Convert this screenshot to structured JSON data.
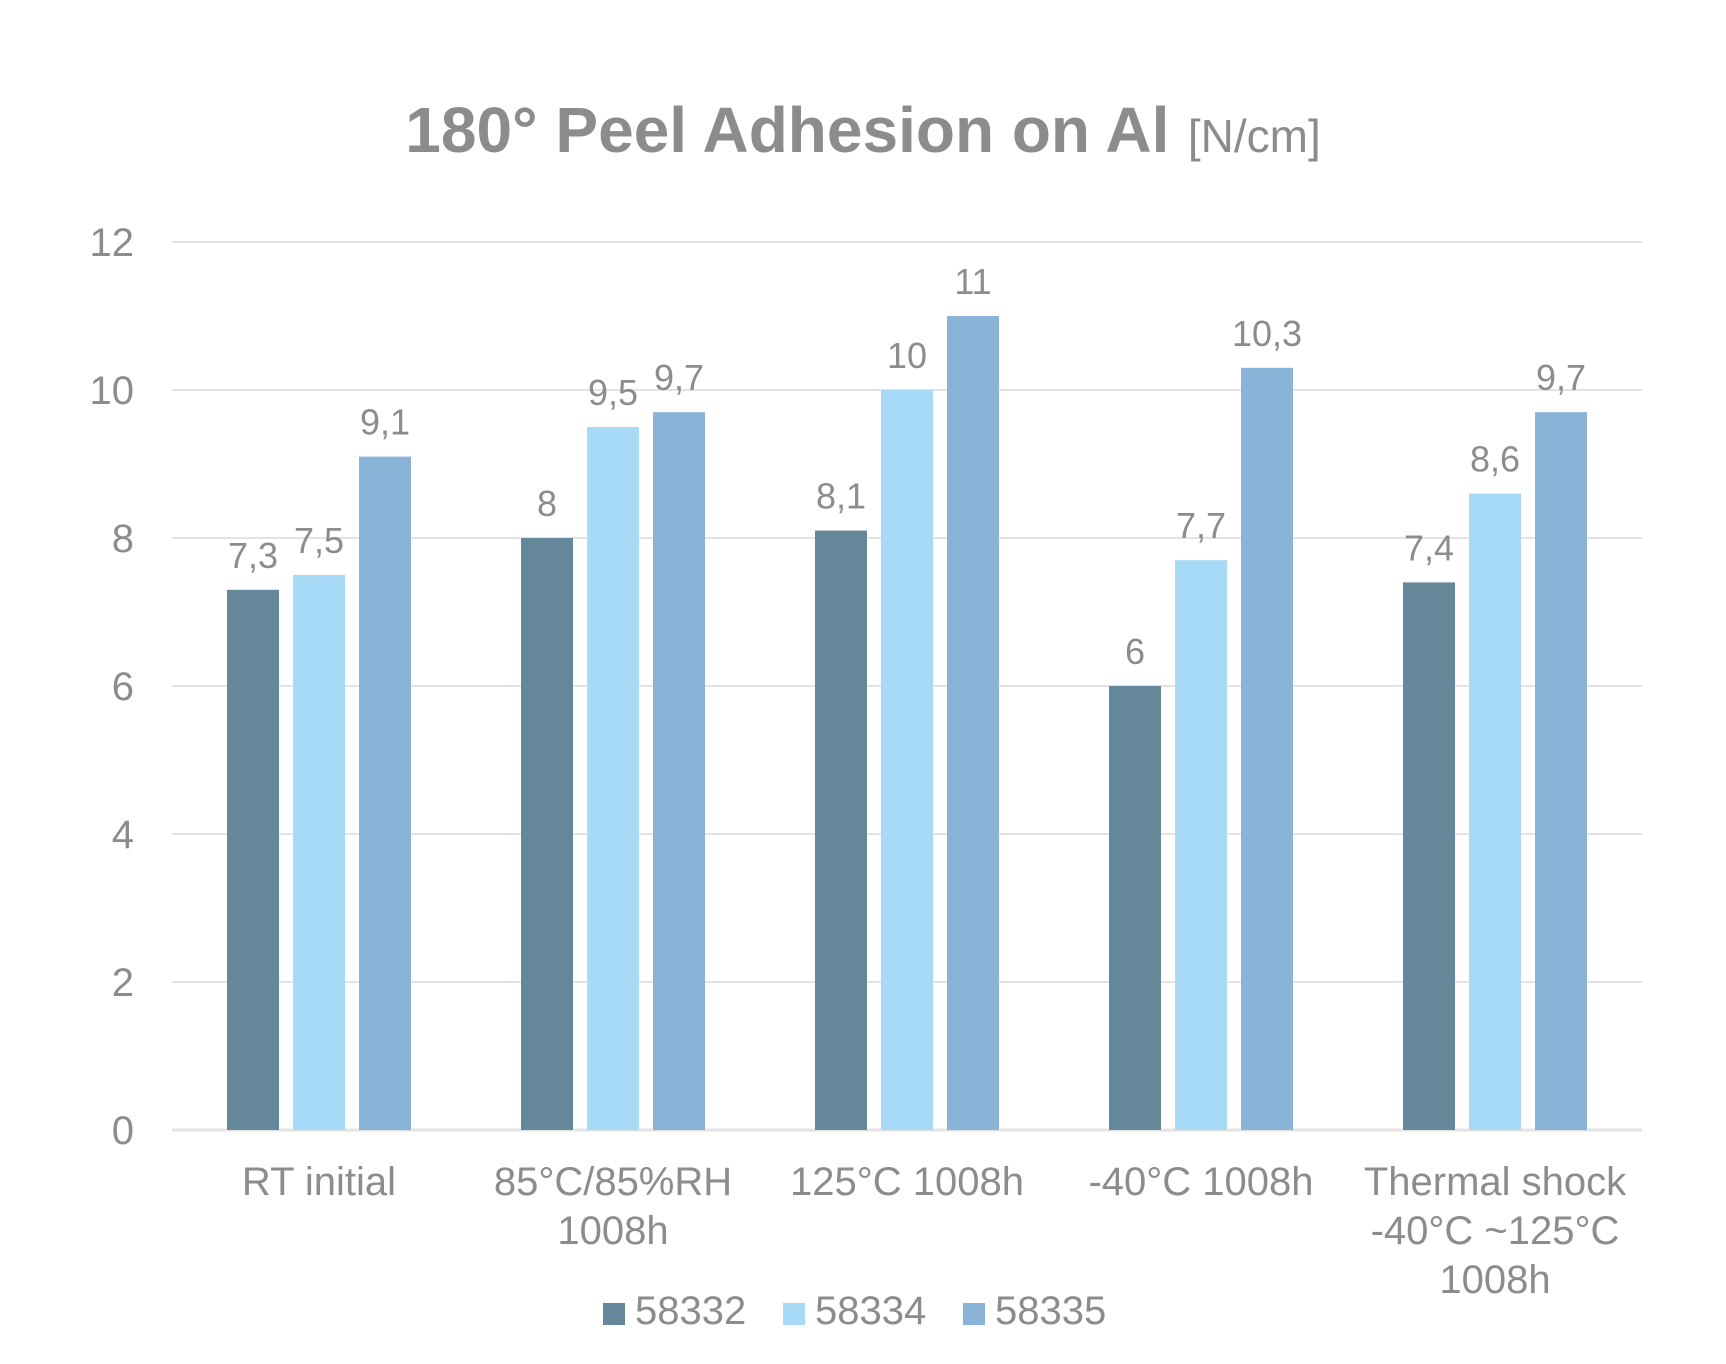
{
  "chart_data": {
    "type": "bar",
    "title": "180° Peel Adhesion on Al",
    "title_unit": "[N/cm]",
    "xlabel": "",
    "ylabel": "",
    "ylim": [
      0,
      12
    ],
    "yticks": [
      "0",
      "2",
      "4",
      "6",
      "8",
      "10",
      "12"
    ],
    "categories": [
      [
        "RT initial"
      ],
      [
        "85°C/85%RH",
        "1008h"
      ],
      [
        "125°C 1008h"
      ],
      [
        "-40°C 1008h"
      ],
      [
        "Thermal shock",
        "-40°C ~125°C",
        "1008h"
      ]
    ],
    "series": [
      {
        "name": "58332",
        "color": "#64879a",
        "values": [
          7.3,
          8,
          8.1,
          6,
          7.4
        ],
        "labels": [
          "7,3",
          "8",
          "8,1",
          "6",
          "7,4"
        ]
      },
      {
        "name": "58334",
        "color": "#a7daf7",
        "values": [
          7.5,
          9.5,
          10,
          7.7,
          8.6
        ],
        "labels": [
          "7,5",
          "9,5",
          "10",
          "7,7",
          "8,6"
        ]
      },
      {
        "name": "58335",
        "color": "#8ab3d8",
        "values": [
          9.1,
          9.7,
          11,
          10.3,
          9.7
        ],
        "labels": [
          "9,1",
          "9,7",
          "11",
          "10,3",
          "9,7"
        ]
      }
    ],
    "grid": true,
    "legend_position": "bottom-center",
    "text_color": "#8c8c8c",
    "grid_color": "#e3e3e3"
  }
}
